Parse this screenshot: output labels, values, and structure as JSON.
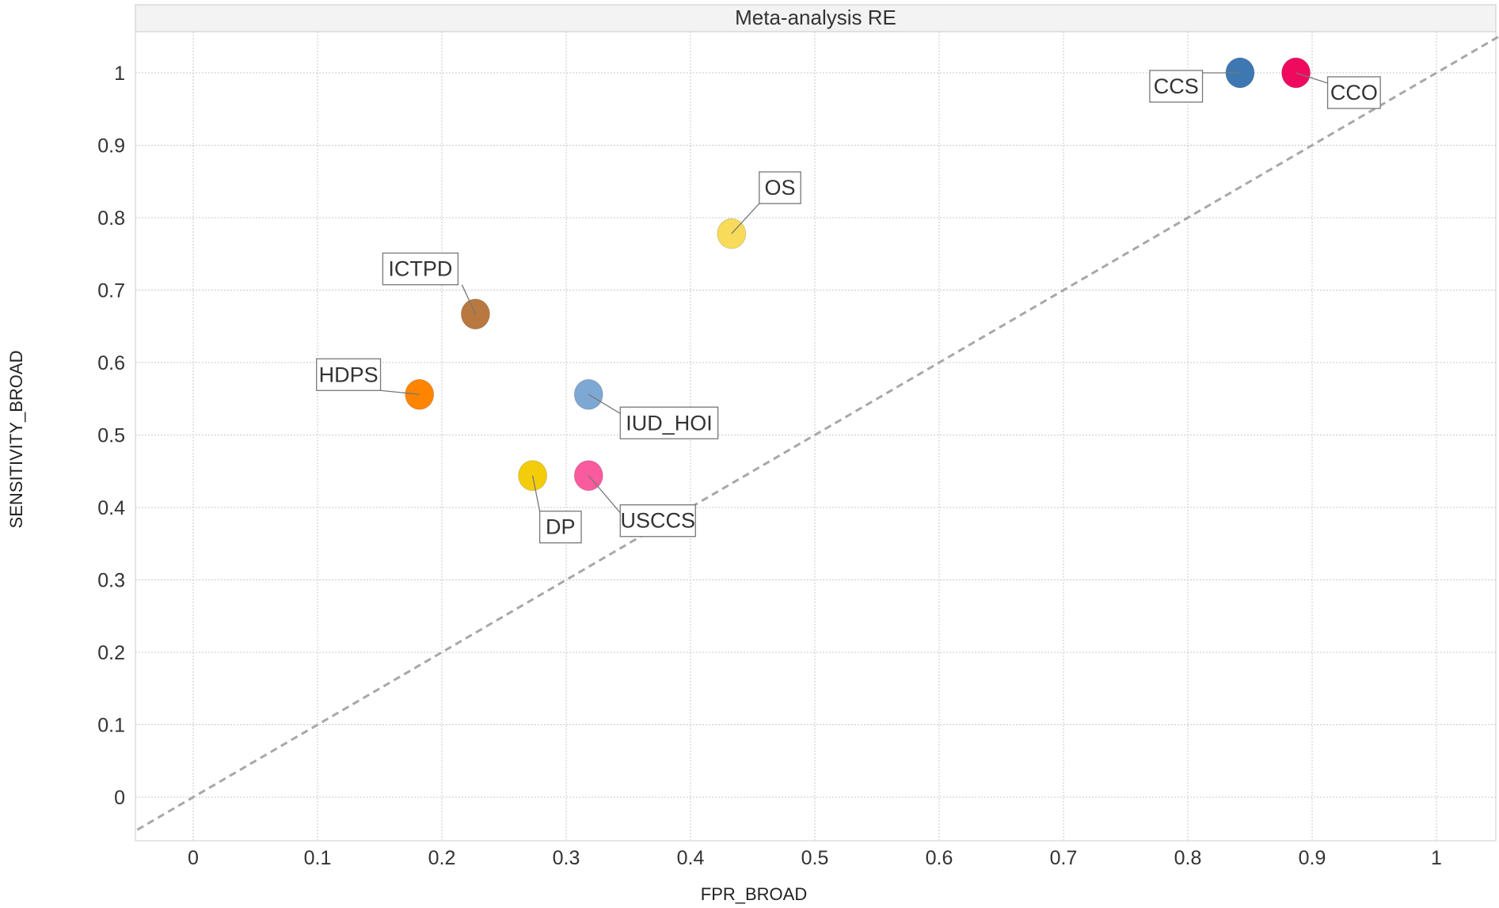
{
  "chart_data": {
    "type": "scatter",
    "title": "Meta-analysis RE",
    "xlabel": "FPR_BROAD",
    "ylabel": "SENSITIVITY_BROAD",
    "xlim": [
      -0.045,
      1.05
    ],
    "ylim": [
      -0.055,
      1.055
    ],
    "xticks": [
      "0",
      "0.1",
      "0.2",
      "0.3",
      "0.4",
      "0.5",
      "0.6",
      "0.7",
      "0.8",
      "0.9",
      "1"
    ],
    "yticks": [
      "0",
      "0.1",
      "0.2",
      "0.3",
      "0.4",
      "0.5",
      "0.6",
      "0.7",
      "0.8",
      "0.9",
      "1"
    ],
    "grid": true,
    "reference_line": "y = x",
    "points": [
      {
        "label": "CCS",
        "x": 0.842,
        "y": 1.0,
        "color": "#3e78b2",
        "label_side": "left-below"
      },
      {
        "label": "CCO",
        "x": 0.887,
        "y": 1.0,
        "color": "#f00a5f",
        "label_side": "right-below"
      },
      {
        "label": "OS",
        "x": 0.433,
        "y": 0.778,
        "color": "#f8db5a",
        "label_side": "right-above"
      },
      {
        "label": "ICTPD",
        "x": 0.227,
        "y": 0.667,
        "color": "#b87840",
        "label_side": "left-above"
      },
      {
        "label": "HDPS",
        "x": 0.182,
        "y": 0.556,
        "color": "#ff8500",
        "label_side": "left-above"
      },
      {
        "label": "IUD_HOI",
        "x": 0.318,
        "y": 0.556,
        "color": "#7ea8d4",
        "label_side": "right-below"
      },
      {
        "label": "DP",
        "x": 0.273,
        "y": 0.444,
        "color": "#f4cd0a",
        "label_side": "right-below"
      },
      {
        "label": "USCCS",
        "x": 0.318,
        "y": 0.444,
        "color": "#fa5a9e",
        "label_side": "right-below"
      }
    ]
  }
}
